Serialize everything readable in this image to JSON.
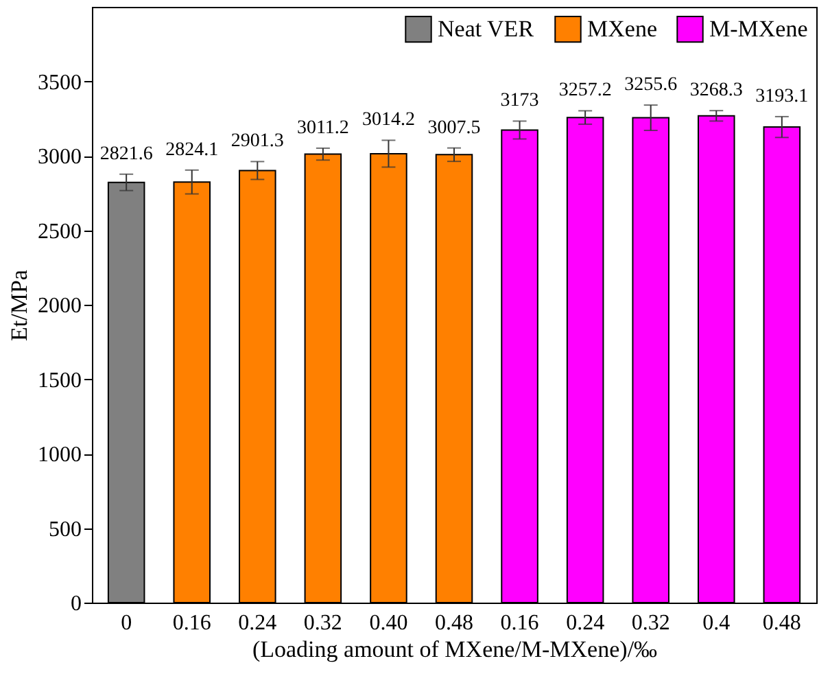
{
  "chart_data": {
    "type": "bar",
    "xlabel": "(Loading amount of MXene/M-MXene)/‰",
    "ylabel": "Et/MPa",
    "categories": [
      "0",
      "0.16",
      "0.24",
      "0.32",
      "0.40",
      "0.48",
      "0.16",
      "0.24",
      "0.32",
      "0.4",
      "0.48"
    ],
    "series": [
      {
        "name": "Neat VER",
        "color": "#808080",
        "values": [
          2821.6,
          null,
          null,
          null,
          null,
          null,
          null,
          null,
          null,
          null,
          null
        ],
        "errors": [
          55,
          null,
          null,
          null,
          null,
          null,
          null,
          null,
          null,
          null,
          null
        ]
      },
      {
        "name": "MXene",
        "color": "#ff8000",
        "values": [
          null,
          2824.1,
          2901.3,
          3011.2,
          3014.2,
          3007.5,
          null,
          null,
          null,
          null,
          null
        ],
        "errors": [
          null,
          80,
          60,
          40,
          90,
          45,
          null,
          null,
          null,
          null,
          null
        ]
      },
      {
        "name": "M-MXene",
        "color": "#ff00ff",
        "values": [
          null,
          null,
          null,
          null,
          null,
          null,
          3173,
          3257.2,
          3255.6,
          3268.3,
          3193.1
        ],
        "errors": [
          null,
          null,
          null,
          null,
          null,
          null,
          60,
          45,
          85,
          35,
          70
        ]
      }
    ],
    "ylim": [
      0,
      4000
    ],
    "yticks": [
      0,
      500,
      1000,
      1500,
      2000,
      2500,
      3000,
      3500
    ],
    "data_labels": true,
    "legend": "top right",
    "grid": false
  }
}
